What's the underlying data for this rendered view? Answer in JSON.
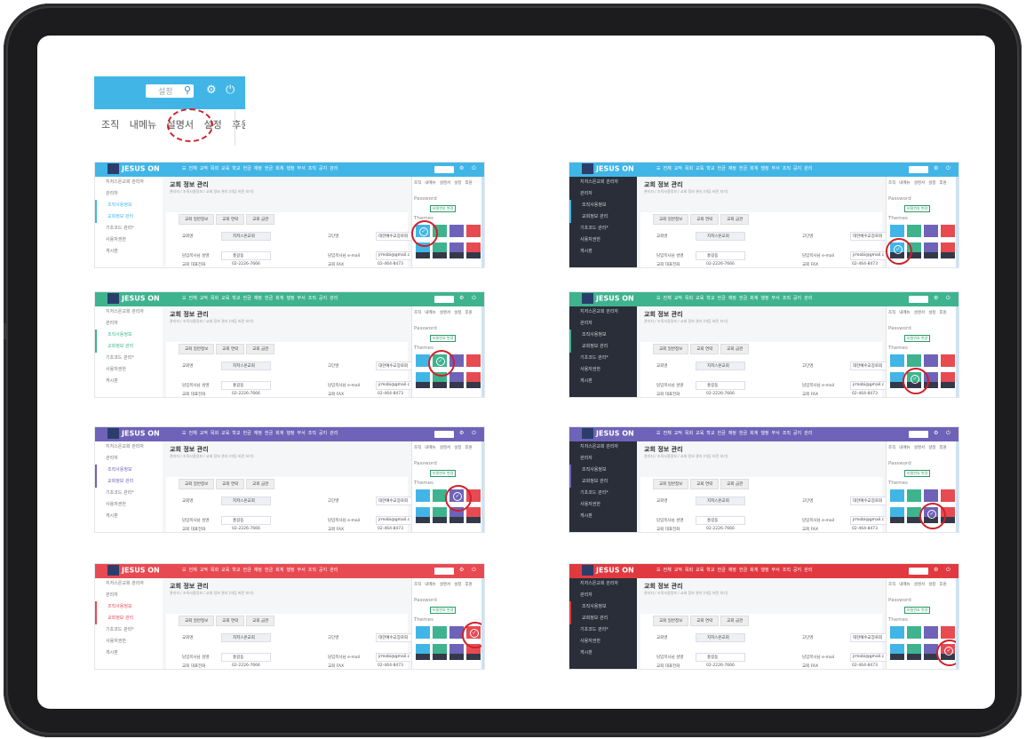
{
  "crop": {
    "search_placeholder": "설정",
    "menu": [
      "조직",
      "내메뉴",
      "설명서",
      "설정",
      "후원"
    ]
  },
  "screens": [
    {
      "id": "s1",
      "accent": "#41b6e6",
      "dark": false,
      "sel": [
        0,
        0
      ]
    },
    {
      "id": "s2",
      "accent": "#41b6e6",
      "dark": true,
      "sel": [
        1,
        0
      ]
    },
    {
      "id": "s3",
      "accent": "#3fb38e",
      "dark": false,
      "sel": [
        0,
        1
      ]
    },
    {
      "id": "s4",
      "accent": "#3fb38e",
      "dark": true,
      "sel": [
        1,
        1
      ]
    },
    {
      "id": "s5",
      "accent": "#6e63b8",
      "dark": false,
      "sel": [
        0,
        2
      ]
    },
    {
      "id": "s6",
      "accent": "#6e63b8",
      "dark": true,
      "sel": [
        1,
        2
      ]
    },
    {
      "id": "s7",
      "accent": "#e84a52",
      "dark": false,
      "sel": [
        0,
        3
      ]
    },
    {
      "id": "s8",
      "accent": "#e03a40",
      "dark": true,
      "sel": [
        1,
        3
      ]
    }
  ],
  "app": {
    "logo": "JESUS ON",
    "nav": [
      "☰",
      "전체",
      "교적",
      "목회",
      "교육",
      "학교",
      "헌금",
      "재정",
      "헌금",
      "회계",
      "행정",
      "부서",
      "조직",
      "공지",
      "관리"
    ],
    "sidebar": [
      "지저스온교회 관리자",
      "관리자",
      "조직사용정보",
      "교회정보 관리",
      "기초코드 관리*",
      "사용자권한",
      "게시판"
    ],
    "page_title": "교회 정보 관리",
    "breadcrumb": "관리자 / 조직사용정보 / 교회 정보 관리 (미등 버전 보기)",
    "tabs": [
      "교회 일반정보",
      "교회 연락",
      "교회 금관"
    ],
    "fields": {
      "church_label": "교회명",
      "church_value": "지저스온교회",
      "pastor_label": "고단명",
      "pastor_value": "대한예수교장로회",
      "manager_label": "담임목사님 성명",
      "manager_value": "홍길동",
      "email_label": "담임목사님 e-mail",
      "email_value": "jrmobi@gmail.c",
      "phone_label": "교회 대표전화",
      "phone_value": "02-2226-7666",
      "fax_label": "교회 FAX",
      "fax_value": "02-464-8473"
    },
    "panel_top": [
      "조직",
      "내메뉴",
      "설명서",
      "설정",
      "후원"
    ],
    "password_label": "Password",
    "password_button": "비밀번호 변경",
    "themes_label": "Themes",
    "theme_colors": [
      "#41b6e6",
      "#3fb38e",
      "#6e63b8",
      "#e84a52"
    ]
  }
}
